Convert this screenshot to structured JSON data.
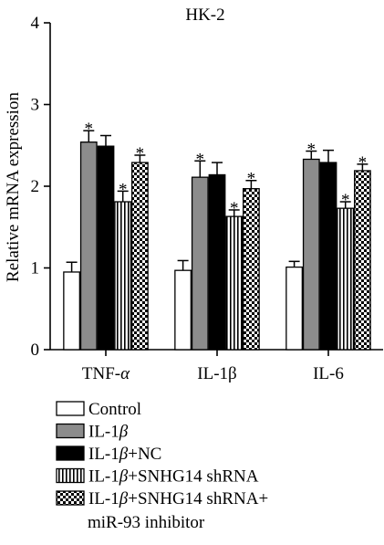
{
  "chart_data": {
    "type": "bar",
    "title": "HK-2",
    "ylabel": "Relative mRNA expression",
    "xlabel": "",
    "ylim": [
      0,
      4
    ],
    "yticks": [
      "0",
      "1",
      "2",
      "3",
      "4"
    ],
    "categories": [
      "TNF-α",
      "IL-1β",
      "IL-6"
    ],
    "series": [
      {
        "name": "Control",
        "pattern": "white",
        "values": [
          0.95,
          0.97,
          1.01
        ],
        "errors": [
          0.12,
          0.12,
          0.07
        ],
        "stars": [
          "",
          "",
          ""
        ]
      },
      {
        "name": "IL-1β",
        "pattern": "gray",
        "values": [
          2.54,
          2.11,
          2.33
        ],
        "errors": [
          0.14,
          0.2,
          0.1
        ],
        "stars": [
          "*",
          "*",
          "*"
        ]
      },
      {
        "name": "IL-1β+NC",
        "pattern": "black",
        "values": [
          2.49,
          2.14,
          2.29
        ],
        "errors": [
          0.13,
          0.15,
          0.15
        ],
        "stars": [
          "",
          "",
          ""
        ]
      },
      {
        "name": "IL-1β+SNHG14 shRNA",
        "pattern": "vstripes",
        "values": [
          1.81,
          1.63,
          1.73
        ],
        "errors": [
          0.13,
          0.08,
          0.08
        ],
        "stars": [
          "*",
          "*",
          "*"
        ]
      },
      {
        "name": "IL-1β+SNHG14 shRNA+\nmiR-93 inhibitor",
        "pattern": "checker",
        "values": [
          2.29,
          1.97,
          2.19
        ],
        "errors": [
          0.09,
          0.1,
          0.08
        ],
        "stars": [
          "*",
          "*",
          "*"
        ]
      }
    ],
    "legend_position": "bottom-left",
    "grid": false
  },
  "legend_lines": [
    [
      "Control"
    ],
    [
      "IL-1β"
    ],
    [
      "IL-1β+NC"
    ],
    [
      "IL-1β+SNHG14 shRNA"
    ],
    [
      "IL-1β+SNHG14 shRNA+",
      "miR-93 inhibitor"
    ]
  ],
  "colors": {
    "gray": "#8c8c8c",
    "black": "#000000",
    "white": "#ffffff"
  }
}
